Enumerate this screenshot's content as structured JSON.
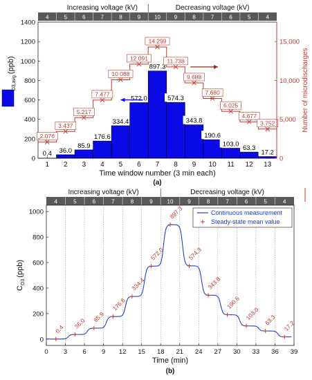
{
  "chart_data": [
    {
      "panel_label": "(a)",
      "type": "bar",
      "categories": [
        1,
        2,
        3,
        4,
        5,
        6,
        7,
        8,
        9,
        10,
        11,
        12,
        13
      ],
      "xlabel": "Time window number (3 min each)",
      "ylabel": "C",
      "ylabel_sub": "O3,avg",
      "ylabel_unit": "(ppb)",
      "ylim": [
        0,
        1400
      ],
      "yticks": [
        0,
        200,
        400,
        600,
        800,
        1000,
        1200,
        1400
      ],
      "bar_values": [
        0.4,
        36.0,
        85.9,
        176.6,
        334.4,
        572.0,
        897.3,
        574.3,
        343.8,
        190.6,
        103.0,
        63.3,
        17.2
      ],
      "bar_labels": [
        "0.4",
        "36.0",
        "85.9",
        "176.6",
        "334.4",
        "572.0",
        "897.3",
        "574.3",
        "343.8",
        "190.6",
        "103.0",
        "63.3",
        "17.2"
      ],
      "right_axis": {
        "label": "Number of microdischarges",
        "ylim": [
          0,
          17500
        ],
        "ticks": [
          0,
          5000,
          10000,
          15000
        ],
        "tick_labels": [
          "0",
          "5,000",
          "10,000",
          "15,000"
        ],
        "values": [
          2076,
          3437,
          5217,
          7477,
          10088,
          12091,
          14299,
          11738,
          9688,
          7680,
          6025,
          4677,
          3752
        ],
        "value_labels": [
          "2.076",
          "3.437",
          "5.217",
          "7.477",
          "10.088",
          "12.091",
          "14.299",
          "11.738",
          "9.688",
          "7.680",
          "6.025",
          "4.677",
          "3.752"
        ]
      },
      "voltage_bar": {
        "increasing_label": "Increasing voltage (kV)",
        "decreasing_label": "Decreasing voltage (kV)",
        "kv": [
          "4",
          "5",
          "6",
          "7",
          "8",
          "9",
          "10",
          "9",
          "8",
          "7",
          "6",
          "5",
          "4"
        ]
      },
      "colors": {
        "bar": "#0a0ae6",
        "line": "#c0392b",
        "axis_right": "#c0392b"
      }
    },
    {
      "panel_label": "(b)",
      "type": "line",
      "xlabel": "Time (min)",
      "ylabel": "C",
      "ylabel_sub": "O3",
      "ylabel_unit": "(ppb)",
      "xlim": [
        0,
        39
      ],
      "ylim": [
        -50,
        1050
      ],
      "xticks": [
        0,
        3,
        6,
        9,
        12,
        15,
        18,
        21,
        24,
        27,
        30,
        33,
        36,
        39
      ],
      "yticks": [
        0,
        200,
        400,
        600,
        800,
        1000
      ],
      "legend": [
        "Continuous measurement",
        "Steady-state mean value"
      ],
      "legend_position": "top-right",
      "voltage_bar": {
        "increasing_label": "Increasing voltage (kV)",
        "decreasing_label": "Decreasing voltage (kV)",
        "kv": [
          "4",
          "5",
          "6",
          "7",
          "8",
          "9",
          "10",
          "9",
          "8",
          "7",
          "6",
          "5",
          "4"
        ]
      },
      "steady_state": [
        {
          "t": 1.5,
          "v": 0.4,
          "label": "0.4"
        },
        {
          "t": 4.5,
          "v": 36.0,
          "label": "36.0"
        },
        {
          "t": 7.5,
          "v": 85.9,
          "label": "85.9"
        },
        {
          "t": 10.5,
          "v": 176.6,
          "label": "176.6"
        },
        {
          "t": 13.5,
          "v": 334.4,
          "label": "334.4"
        },
        {
          "t": 16.5,
          "v": 572.0,
          "label": "572.0"
        },
        {
          "t": 19.5,
          "v": 897.3,
          "label": "897.3"
        },
        {
          "t": 22.5,
          "v": 574.3,
          "label": "574.3"
        },
        {
          "t": 25.5,
          "v": 343.8,
          "label": "343.8"
        },
        {
          "t": 28.5,
          "v": 190.6,
          "label": "190.6"
        },
        {
          "t": 31.5,
          "v": 103.0,
          "label": "103.0"
        },
        {
          "t": 34.5,
          "v": 63.3,
          "label": "63.3"
        },
        {
          "t": 37.5,
          "v": 17.2,
          "label": "17.2"
        }
      ],
      "colors": {
        "line": "#1f3fd6",
        "marker": "#c0392b",
        "label": "#c0392b"
      }
    }
  ]
}
